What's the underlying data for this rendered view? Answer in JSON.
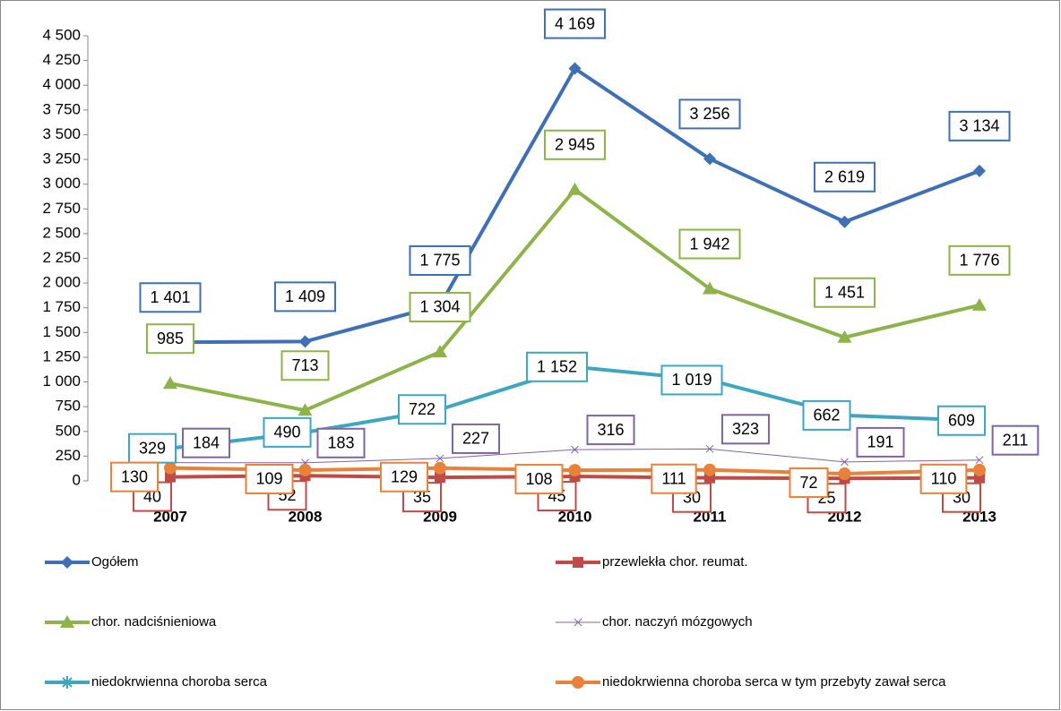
{
  "chart_data": {
    "type": "line",
    "categories": [
      "2007",
      "2008",
      "2009",
      "2010",
      "2011",
      "2012",
      "2013"
    ],
    "series": [
      {
        "name": "Ogółem",
        "color": "#3f6fb5",
        "marker": "diamond",
        "width": 4,
        "values": [
          1401,
          1409,
          1775,
          4169,
          3256,
          2619,
          3134
        ],
        "value_labels": [
          "1 401",
          "1 409",
          "1 775",
          "4 169",
          "3 256",
          "2 619",
          "3 134"
        ]
      },
      {
        "name": "przewlekła chor. reumat.",
        "color": "#be4b48",
        "marker": "square",
        "width": 4,
        "values": [
          40,
          52,
          35,
          45,
          30,
          25,
          30
        ]
      },
      {
        "name": "chor. nadciśnieniowa",
        "color": "#8db34a",
        "marker": "triangle",
        "width": 4,
        "values": [
          985,
          713,
          1304,
          2945,
          1942,
          1451,
          1776
        ],
        "value_labels": [
          "985",
          "713",
          "1 304",
          "2 945",
          "1 942",
          "1 451",
          "1 776"
        ]
      },
      {
        "name": "chor. naczyń mózgowych",
        "color": "#8064a2",
        "marker": "x",
        "width": 1,
        "values": [
          184,
          183,
          227,
          316,
          323,
          191,
          211
        ]
      },
      {
        "name": "niedokrwienna choroba serca",
        "color": "#3ea6bf",
        "marker": "star",
        "width": 4,
        "values": [
          329,
          490,
          722,
          1152,
          1019,
          662,
          609
        ],
        "value_labels": [
          "329",
          "490",
          "722",
          "1 152",
          "1 019",
          "662",
          "609"
        ]
      },
      {
        "name": "niedokrwienna choroba serca w tym przebyty zawał serca",
        "color": "#e8823a",
        "marker": "circle",
        "width": 4,
        "values": [
          130,
          109,
          129,
          108,
          111,
          72,
          110
        ]
      }
    ],
    "ylim": [
      0,
      4500
    ],
    "yticks": [
      0,
      250,
      500,
      750,
      {
        "value": 1000,
        "label": "1 000"
      },
      {
        "value": 1250,
        "label": "1 250"
      },
      {
        "value": 1500,
        "label": "1 500"
      },
      {
        "value": 1750,
        "label": "1 750"
      },
      {
        "value": 2000,
        "label": "2 000"
      },
      {
        "value": 2250,
        "label": "2 250"
      },
      {
        "value": 2500,
        "label": "2 500"
      },
      {
        "value": 2750,
        "label": "2 750"
      },
      {
        "value": 3000,
        "label": "3 000"
      },
      {
        "value": 3250,
        "label": "3 250"
      },
      {
        "value": 3500,
        "label": "3 500"
      },
      {
        "value": 3750,
        "label": "3 750"
      },
      {
        "value": 4000,
        "label": "4 000"
      },
      {
        "value": 4250,
        "label": "4 250"
      },
      {
        "value": 4500,
        "label": "4 500"
      }
    ],
    "grid": false
  }
}
